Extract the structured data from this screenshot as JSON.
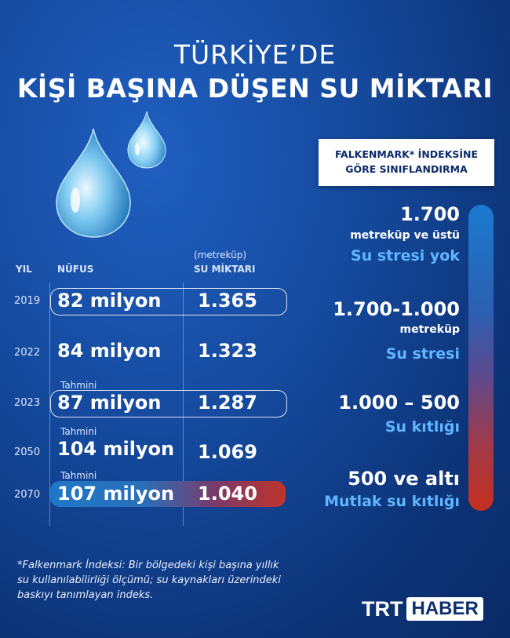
{
  "title": {
    "line1": "TÜRKİYE’DE",
    "line2": "KİŞİ BAŞINA DÜŞEN SU MİKTARI"
  },
  "table": {
    "headers": {
      "year": "YIL",
      "population": "NÜFUS",
      "water_unit": "(metreküp)",
      "water": "SU MİKTARI"
    },
    "rows": [
      {
        "year": "2019",
        "population": "82 milyon",
        "water": "1.365",
        "note": ""
      },
      {
        "year": "2022",
        "population": "84 milyon",
        "water": "1.323",
        "note": ""
      },
      {
        "year": "2023",
        "population": "87 milyon",
        "water": "1.287",
        "note": "Tahmini"
      },
      {
        "year": "2050",
        "population": "104 milyon",
        "water": "1.069",
        "note": "Tahmini"
      },
      {
        "year": "2070",
        "population": "107 milyon",
        "water": "1.040",
        "note": "Tahmini"
      }
    ]
  },
  "classification": {
    "box": {
      "line1": "FALKENMARK* İNDEKSİNE",
      "line2": "GÖRE SINIFLANDIRMA"
    },
    "levels": [
      {
        "value": "1.700",
        "unit": "metreküp ve üstü",
        "label": "Su stresi yok"
      },
      {
        "value": "1.700-1.000",
        "unit": "metreküp",
        "label": "Su stresi"
      },
      {
        "value": "1.000 – 500",
        "unit": "",
        "label": "Su kıtlığı"
      },
      {
        "value": "500 ve altı",
        "unit": "",
        "label": "Mutlak su kıtlığı"
      }
    ],
    "colors": {
      "top": "#1a7ad0",
      "bottom": "#c4301e",
      "label": "#5fb6ff"
    }
  },
  "footnote": {
    "line1": "*Falkenmark İndeksi: Bir bölgedeki kişi başına yıllık",
    "line2": "su kullanılabilirliği ölçümü; su kaynakları üzerindeki",
    "line3": "baskıyı tanımlayan indeks."
  },
  "logo": {
    "part1": "TRT",
    "part2": "HABER"
  }
}
